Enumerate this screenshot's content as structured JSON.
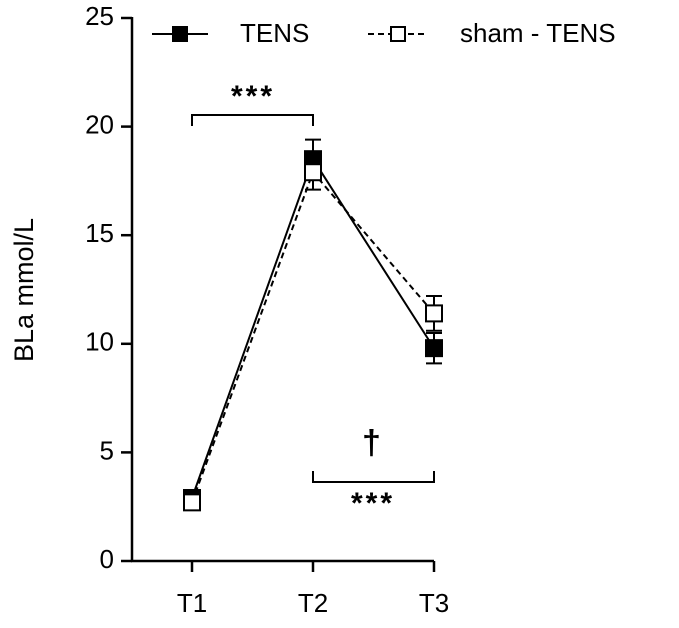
{
  "chart_data": {
    "type": "line",
    "ylabel": "BLa mmol/L",
    "categories": [
      "T1",
      "T2",
      "T3"
    ],
    "series": [
      {
        "name": "TENS",
        "color": "#000000",
        "marker": "filled-square",
        "dash": false,
        "values": [
          2.9,
          18.5,
          9.8
        ],
        "errors": [
          0.3,
          0.9,
          0.7
        ]
      },
      {
        "name": "sham - TENS",
        "color": "#000000",
        "marker": "open-square",
        "dash": true,
        "values": [
          2.7,
          17.9,
          11.4
        ],
        "errors": [
          0.2,
          0.8,
          0.8
        ]
      }
    ],
    "ylim": [
      0,
      25
    ],
    "yticks": [
      0,
      5,
      10,
      15,
      20,
      25
    ],
    "annotations": [
      "***",
      "†",
      "***"
    ]
  }
}
